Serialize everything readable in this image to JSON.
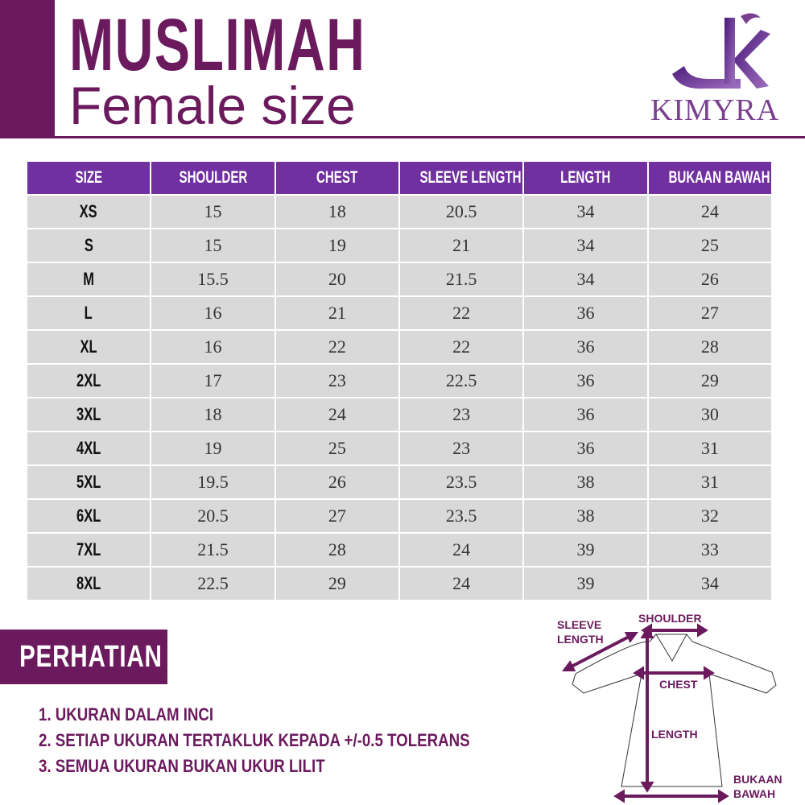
{
  "header": {
    "title": "MUSLIMAH",
    "subtitle": "Female size"
  },
  "brand": {
    "name": "KIMYRA",
    "logo_mark": "sk"
  },
  "colors": {
    "primary": "#6b1a5e",
    "table_header": "#7030a0",
    "cell_bg": "#d9d9d9"
  },
  "table": {
    "columns": [
      "SIZE",
      "SHOULDER",
      "CHEST",
      "SLEEVE LENGTH",
      "LENGTH",
      "BUKAAN BAWAH"
    ],
    "rows": [
      [
        "XS",
        "15",
        "18",
        "20.5",
        "34",
        "24"
      ],
      [
        "S",
        "15",
        "19",
        "21",
        "34",
        "25"
      ],
      [
        "M",
        "15.5",
        "20",
        "21.5",
        "34",
        "26"
      ],
      [
        "L",
        "16",
        "21",
        "22",
        "36",
        "27"
      ],
      [
        "XL",
        "16",
        "22",
        "22",
        "36",
        "28"
      ],
      [
        "2XL",
        "17",
        "23",
        "22.5",
        "36",
        "29"
      ],
      [
        "3XL",
        "18",
        "24",
        "23",
        "36",
        "30"
      ],
      [
        "4XL",
        "19",
        "25",
        "23",
        "36",
        "31"
      ],
      [
        "5XL",
        "19.5",
        "26",
        "23.5",
        "38",
        "31"
      ],
      [
        "6XL",
        "20.5",
        "27",
        "23.5",
        "38",
        "32"
      ],
      [
        "7XL",
        "21.5",
        "28",
        "24",
        "39",
        "33"
      ],
      [
        "8XL",
        "22.5",
        "29",
        "24",
        "39",
        "34"
      ]
    ]
  },
  "notice": {
    "title": "PERHATIAN",
    "items": [
      "1. UKURAN DALAM INCI",
      "2. SETIAP UKURAN TERTAKLUK KEPADA +/-0.5 TOLERANS",
      "3. SEMUA UKURAN BUKAN UKUR LILIT"
    ]
  },
  "diagram": {
    "labels": {
      "sleeve_1": "SLEEVE",
      "sleeve_2": "LENGTH",
      "shoulder": "SHOULDER",
      "chest": "CHEST",
      "length": "LENGTH",
      "hem_1": "BUKAAN",
      "hem_2": "BAWAH"
    }
  }
}
